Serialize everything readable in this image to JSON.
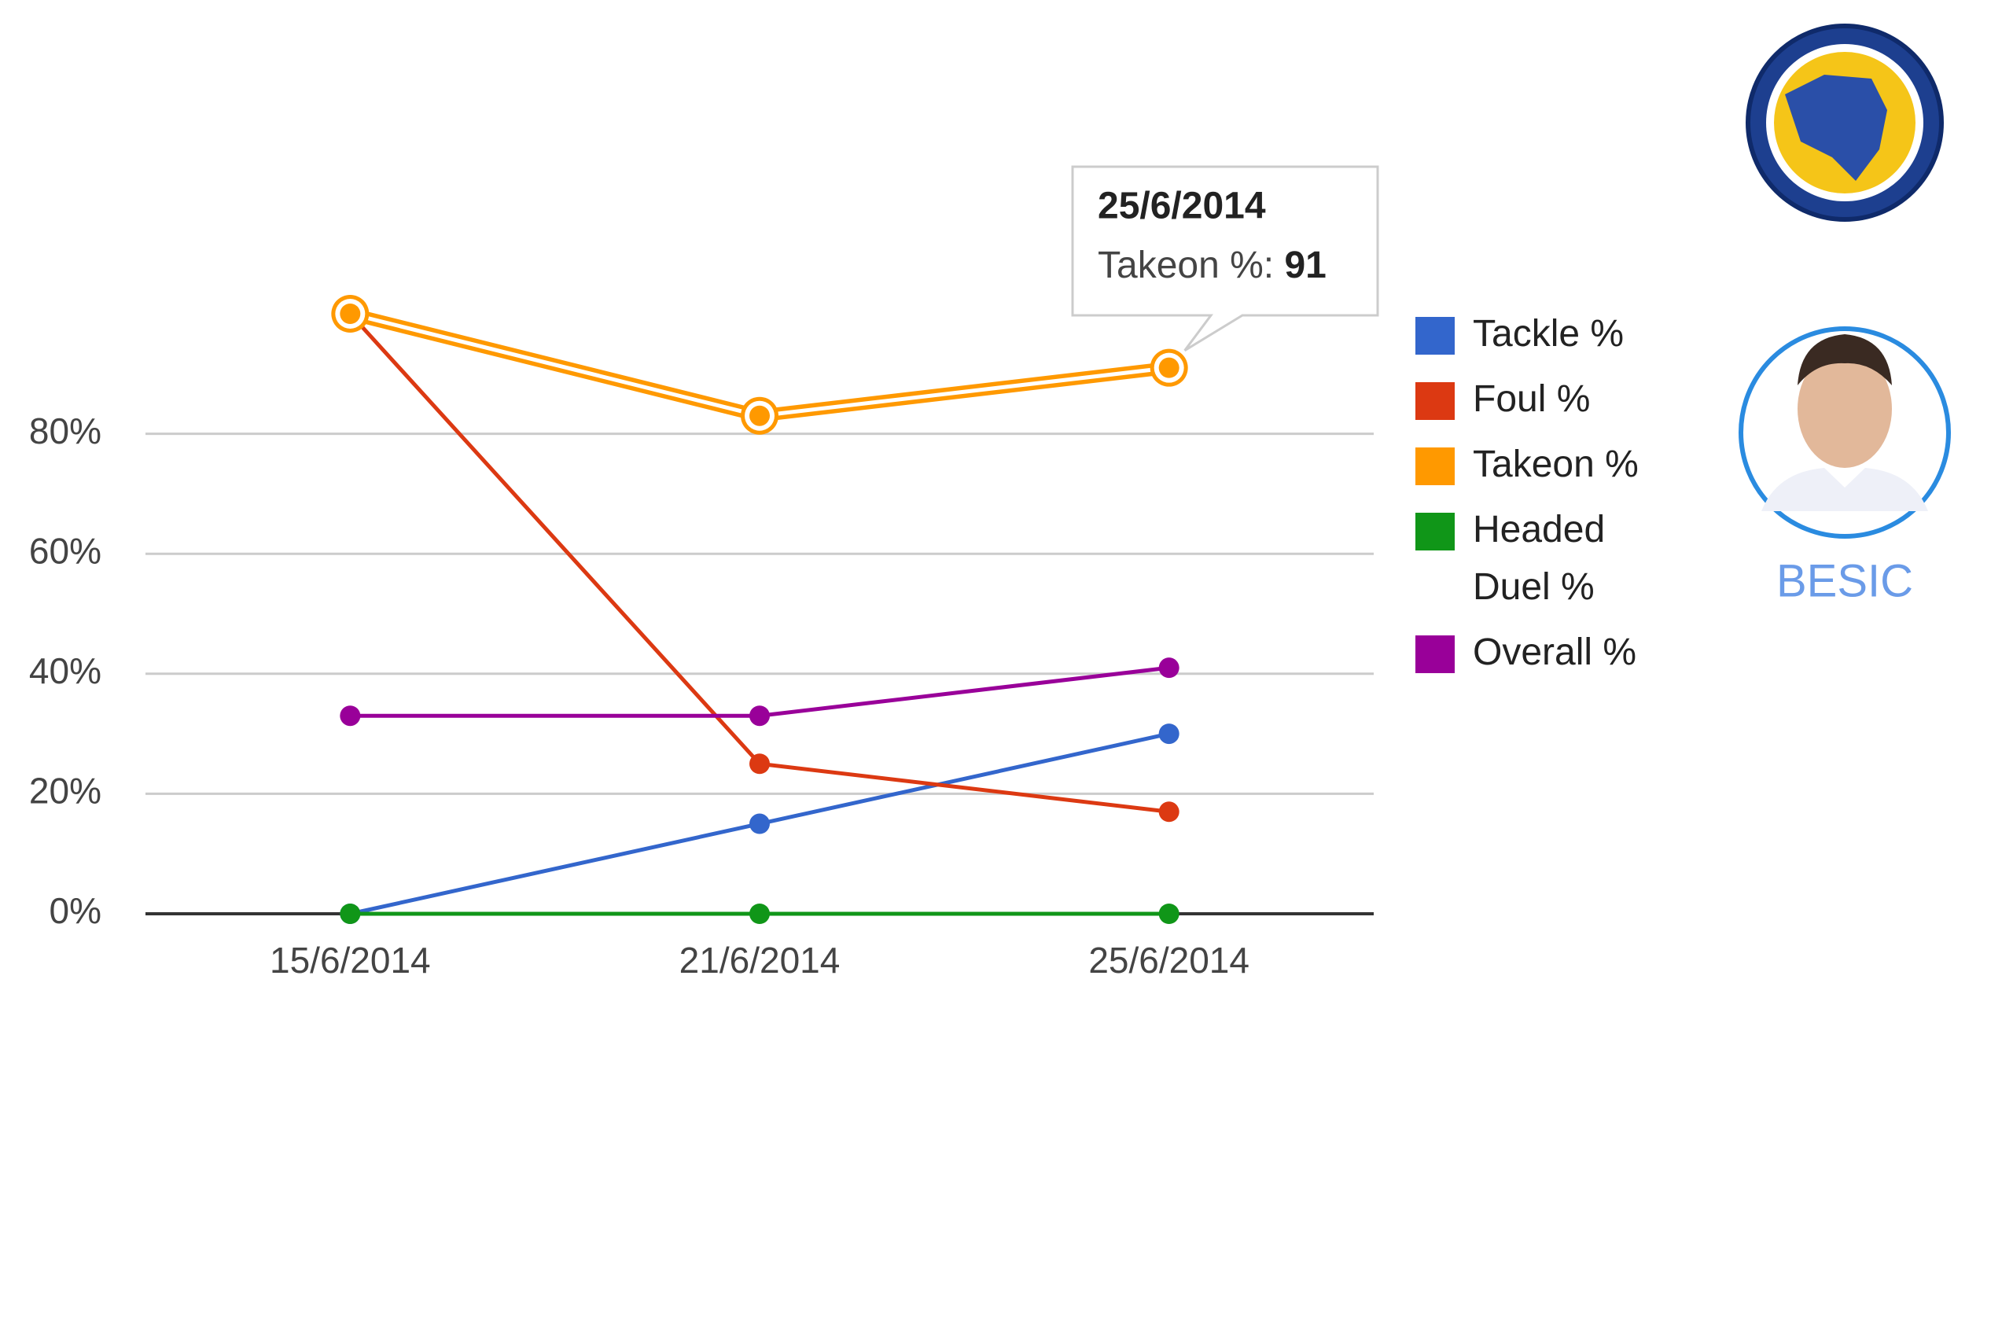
{
  "chart_data": {
    "type": "line",
    "x": [
      "15/6/2014",
      "21/6/2014",
      "25/6/2014"
    ],
    "series": [
      {
        "name": "Tackle %",
        "color": "#3366cc",
        "values": [
          0,
          15,
          30
        ]
      },
      {
        "name": "Foul %",
        "color": "#dc3912",
        "values": [
          100,
          25,
          17
        ]
      },
      {
        "name": "Takeon %",
        "color": "#ff9900",
        "values": [
          100,
          83,
          91
        ]
      },
      {
        "name": "Headed Duel %",
        "color": "#109618",
        "values": [
          0,
          0,
          0
        ]
      },
      {
        "name": "Overall %",
        "color": "#990099",
        "values": [
          33,
          33,
          41
        ]
      }
    ],
    "ylim": [
      0,
      100
    ],
    "yticks": [
      {
        "value": 0,
        "label": "0%"
      },
      {
        "value": 20,
        "label": "20%"
      },
      {
        "value": 40,
        "label": "40%"
      },
      {
        "value": 60,
        "label": "60%"
      },
      {
        "value": 80,
        "label": "80%"
      }
    ],
    "grid": true
  },
  "player": {
    "name": "BESIC"
  }
}
